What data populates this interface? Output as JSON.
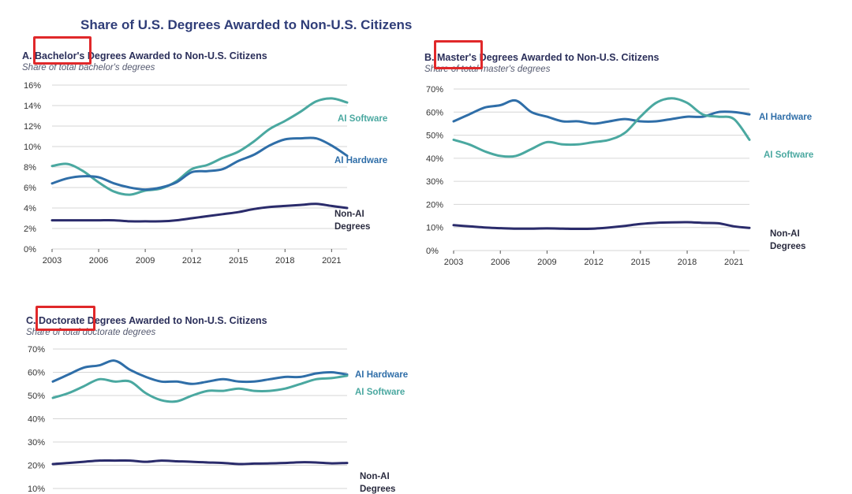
{
  "title": "Share of U.S. Degrees Awarded to Non-U.S. Citizens",
  "colors": {
    "ai_software": "#4aa8a0",
    "ai_hardware": "#2f6ea8",
    "non_ai": "#2a2b6b",
    "highlight": "#e0282a",
    "grid": "#d6d6d6"
  },
  "chart_data": [
    {
      "type": "line",
      "title": "A. Bachelor's Degrees Awarded to Non-U.S. Citizens",
      "subtitle": "Share of total bachelor's degrees",
      "ylim": [
        0,
        16
      ],
      "yticks": [
        0,
        2,
        4,
        6,
        8,
        10,
        12,
        14,
        16
      ],
      "ytick_labels": [
        "0%",
        "2%",
        "4%",
        "6%",
        "8%",
        "10%",
        "12%",
        "14%",
        "16%"
      ],
      "xlim": [
        2003,
        2022
      ],
      "xticks": [
        2003,
        2006,
        2009,
        2012,
        2015,
        2018,
        2021
      ],
      "xtick_labels": [
        "2003",
        "2006",
        "2009",
        "2012",
        "2015",
        "2018",
        "2021"
      ],
      "x": [
        2003,
        2004,
        2005,
        2006,
        2007,
        2008,
        2009,
        2010,
        2011,
        2012,
        2013,
        2014,
        2015,
        2016,
        2017,
        2018,
        2019,
        2020,
        2021,
        2022
      ],
      "series": [
        {
          "name": "AI Software",
          "color": "#4aa8a0",
          "values": [
            8.1,
            8.3,
            7.6,
            6.5,
            5.6,
            5.3,
            5.7,
            5.9,
            6.6,
            7.8,
            8.2,
            8.9,
            9.5,
            10.5,
            11.7,
            12.5,
            13.4,
            14.4,
            14.7,
            14.3
          ]
        },
        {
          "name": "AI Hardware",
          "color": "#2f6ea8",
          "values": [
            6.4,
            6.9,
            7.1,
            7.0,
            6.4,
            6.0,
            5.8,
            6.0,
            6.5,
            7.5,
            7.6,
            7.8,
            8.6,
            9.2,
            10.1,
            10.7,
            10.8,
            10.8,
            10.1,
            9.1
          ]
        },
        {
          "name": "Non-AI Degrees",
          "color": "#2a2b6b",
          "values": [
            2.8,
            2.8,
            2.8,
            2.8,
            2.8,
            2.7,
            2.7,
            2.7,
            2.8,
            3.0,
            3.2,
            3.4,
            3.6,
            3.9,
            4.1,
            4.2,
            4.3,
            4.4,
            4.2,
            4.0
          ]
        }
      ],
      "highlighted_word": "Bachelor's"
    },
    {
      "type": "line",
      "title": "B. Master's Degrees Awarded to Non-U.S. Citizens",
      "subtitle": "Share of total master's degrees",
      "ylim": [
        0,
        70
      ],
      "yticks": [
        0,
        10,
        20,
        30,
        40,
        50,
        60,
        70
      ],
      "ytick_labels": [
        "0%",
        "10%",
        "20%",
        "30%",
        "40%",
        "50%",
        "60%",
        "70%"
      ],
      "xlim": [
        2003,
        2022
      ],
      "xticks": [
        2003,
        2006,
        2009,
        2012,
        2015,
        2018,
        2021
      ],
      "xtick_labels": [
        "2003",
        "2006",
        "2009",
        "2012",
        "2015",
        "2018",
        "2021"
      ],
      "x": [
        2003,
        2004,
        2005,
        2006,
        2007,
        2008,
        2009,
        2010,
        2011,
        2012,
        2013,
        2014,
        2015,
        2016,
        2017,
        2018,
        2019,
        2020,
        2021,
        2022
      ],
      "series": [
        {
          "name": "AI Hardware",
          "color": "#2f6ea8",
          "values": [
            56,
            59,
            62,
            63,
            65,
            60,
            58,
            56,
            56,
            55,
            56,
            57,
            56,
            56,
            57,
            58,
            58,
            60,
            60,
            59
          ]
        },
        {
          "name": "AI Software",
          "color": "#4aa8a0",
          "values": [
            48,
            46,
            43,
            41,
            41,
            44,
            47,
            46,
            46,
            47,
            48,
            51,
            58,
            64,
            66,
            64,
            59,
            58,
            57,
            48
          ]
        },
        {
          "name": "Non-AI Degrees",
          "color": "#2a2b6b",
          "values": [
            11,
            10.5,
            10,
            9.7,
            9.5,
            9.5,
            9.6,
            9.5,
            9.4,
            9.5,
            10,
            10.7,
            11.5,
            12,
            12.2,
            12.3,
            12,
            11.8,
            10.5,
            9.8
          ]
        }
      ],
      "highlighted_word": "Master's"
    },
    {
      "type": "line",
      "title": "C. Doctorate Degrees Awarded to Non-U.S. Citizens",
      "subtitle": "Share of total doctorate degrees",
      "ylim": [
        10,
        70
      ],
      "yticks": [
        10,
        20,
        30,
        40,
        50,
        60,
        70
      ],
      "ytick_labels": [
        "10%",
        "20%",
        "30%",
        "40%",
        "50%",
        "60%",
        "70%"
      ],
      "xlim": [
        2003,
        2022
      ],
      "x": [
        2003,
        2004,
        2005,
        2006,
        2007,
        2008,
        2009,
        2010,
        2011,
        2012,
        2013,
        2014,
        2015,
        2016,
        2017,
        2018,
        2019,
        2020,
        2021,
        2022
      ],
      "series": [
        {
          "name": "AI Hardware",
          "color": "#2f6ea8",
          "values": [
            56,
            59,
            62,
            63,
            65,
            61,
            58,
            56,
            56,
            55,
            56,
            57,
            56,
            56,
            57,
            58,
            58,
            59.5,
            60,
            59
          ]
        },
        {
          "name": "AI Software",
          "color": "#4aa8a0",
          "values": [
            49,
            51,
            54,
            57,
            56,
            56,
            51,
            48,
            47.5,
            50,
            52,
            52,
            53,
            52,
            52,
            53,
            55,
            57,
            57.5,
            58.5
          ]
        },
        {
          "name": "Non-AI Degrees",
          "color": "#2a2b6b",
          "values": [
            20.5,
            21,
            21.5,
            22,
            22,
            22,
            21.5,
            22,
            21.7,
            21.5,
            21.2,
            21,
            20.5,
            20.7,
            20.8,
            21,
            21.3,
            21.2,
            20.8,
            21
          ]
        }
      ],
      "highlighted_word": "Doctorate"
    }
  ]
}
